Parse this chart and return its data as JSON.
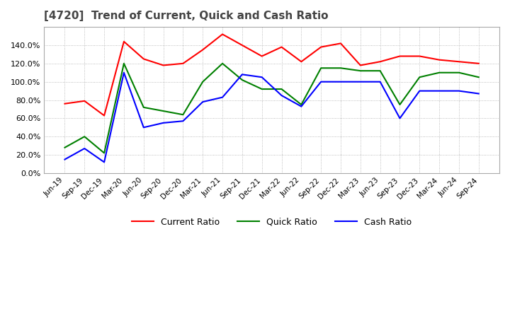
{
  "title": "[4720]  Trend of Current, Quick and Cash Ratio",
  "title_fontsize": 11,
  "background_color": "#ffffff",
  "plot_background": "#ffffff",
  "grid_color": "#aaaaaa",
  "ylim": [
    0.0,
    1.6
  ],
  "yticks": [
    0.0,
    0.2,
    0.4,
    0.6,
    0.8,
    1.0,
    1.2,
    1.4
  ],
  "x_labels": [
    "Jun-19",
    "Sep-19",
    "Dec-19",
    "Mar-20",
    "Jun-20",
    "Sep-20",
    "Dec-20",
    "Mar-21",
    "Jun-21",
    "Sep-21",
    "Dec-21",
    "Mar-22",
    "Jun-22",
    "Sep-22",
    "Dec-22",
    "Mar-23",
    "Jun-23",
    "Sep-23",
    "Dec-23",
    "Mar-24",
    "Jun-24",
    "Sep-24"
  ],
  "current_ratio": [
    0.76,
    0.79,
    0.63,
    1.44,
    1.25,
    1.18,
    1.2,
    1.35,
    1.52,
    1.4,
    1.28,
    1.38,
    1.22,
    1.38,
    1.42,
    1.18,
    1.22,
    1.28,
    1.28,
    1.24,
    1.22,
    1.2
  ],
  "quick_ratio": [
    0.28,
    0.4,
    0.22,
    1.2,
    0.72,
    0.68,
    0.64,
    1.0,
    1.2,
    1.02,
    0.92,
    0.92,
    0.75,
    1.15,
    1.15,
    1.12,
    1.12,
    0.75,
    1.05,
    1.1,
    1.1,
    1.05
  ],
  "cash_ratio": [
    0.15,
    0.27,
    0.12,
    1.1,
    0.5,
    0.55,
    0.57,
    0.78,
    0.83,
    1.08,
    1.05,
    0.85,
    0.73,
    1.0,
    1.0,
    1.0,
    1.0,
    0.6,
    0.9,
    0.9,
    0.9,
    0.87
  ],
  "current_color": "#ff0000",
  "quick_color": "#008000",
  "cash_color": "#0000ff",
  "line_width": 1.5
}
